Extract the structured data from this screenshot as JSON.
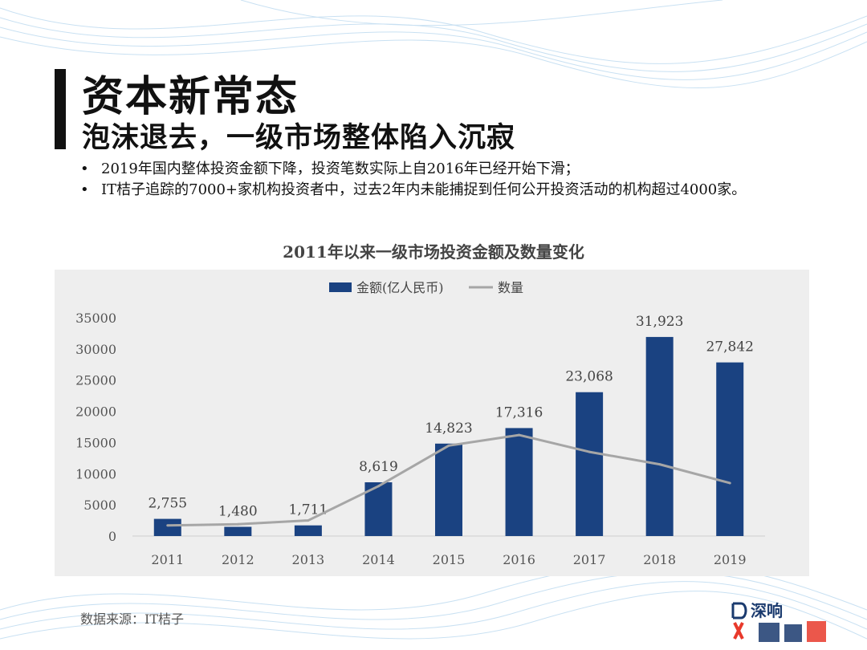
{
  "title": "资本新常态",
  "subtitle": "泡沫退去，一级市场整体陷入沉寂",
  "bullets": [
    "2019年国内整体投资金额下降，投资笔数实际上自2016年已经开始下滑；",
    "IT桔子追踪的7000+家机构投资者中，过去2年内未能捕捉到任何公开投资活动的机构超过4000家。"
  ],
  "bullet_marker": "•",
  "source": "数据来源：IT桔子",
  "logo_text": "深响",
  "colors": {
    "bar": "#1a4281",
    "line": "#a6a6a6",
    "panel": "#eeeeee",
    "accent": "#e8392b"
  },
  "chart_data": {
    "type": "bar",
    "title": "2011年以来一级市场投资金额及数量变化",
    "categories": [
      "2011",
      "2012",
      "2013",
      "2014",
      "2015",
      "2016",
      "2017",
      "2018",
      "2019"
    ],
    "series": [
      {
        "name": "金额(亿人民币)",
        "type": "bar",
        "values": [
          2755,
          1480,
          1711,
          8619,
          14823,
          17316,
          23068,
          31923,
          27842
        ],
        "labels": [
          "2,755",
          "1,480",
          "1,711",
          "8,619",
          "14,823",
          "17,316",
          "23,068",
          "31,923",
          "27,842"
        ]
      },
      {
        "name": "数量",
        "type": "line",
        "values": [
          1700,
          1900,
          2500,
          8000,
          14500,
          16200,
          13500,
          11500,
          8500
        ]
      }
    ],
    "ylim": [
      0,
      35000
    ],
    "yticks": [
      "0",
      "5000",
      "10000",
      "15000",
      "20000",
      "25000",
      "30000",
      "35000"
    ],
    "legend": "top",
    "grid": false
  }
}
